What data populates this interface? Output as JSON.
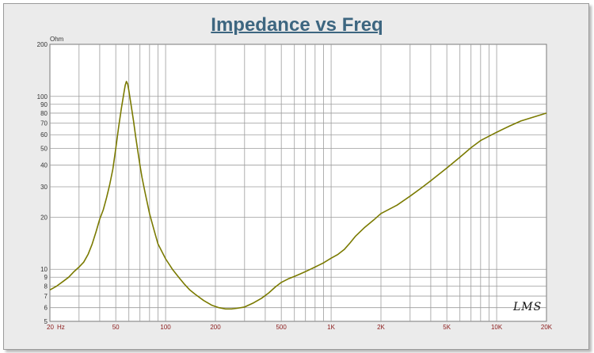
{
  "chart_data": {
    "type": "line",
    "title": "Impedance vs Freq",
    "ylabel": "Ohm",
    "xlabel": "",
    "x_unit": "Hz",
    "x_scale": "log",
    "y_scale": "log",
    "xlim": [
      20,
      20000
    ],
    "ylim": [
      5,
      200
    ],
    "grid": true,
    "x_ticks": [
      {
        "value": 20,
        "label": "20"
      },
      {
        "value": 50,
        "label": "50"
      },
      {
        "value": 100,
        "label": "100"
      },
      {
        "value": 200,
        "label": "200"
      },
      {
        "value": 500,
        "label": "500"
      },
      {
        "value": 1000,
        "label": "1K"
      },
      {
        "value": 2000,
        "label": "2K"
      },
      {
        "value": 5000,
        "label": "5K"
      },
      {
        "value": 10000,
        "label": "10K"
      },
      {
        "value": 20000,
        "label": "20K"
      }
    ],
    "y_ticks": [
      {
        "value": 200,
        "label": "200"
      },
      {
        "value": 100,
        "label": "100"
      },
      {
        "value": 90,
        "label": "90"
      },
      {
        "value": 80,
        "label": "80"
      },
      {
        "value": 70,
        "label": "70"
      },
      {
        "value": 60,
        "label": "60"
      },
      {
        "value": 50,
        "label": "50"
      },
      {
        "value": 40,
        "label": "40"
      },
      {
        "value": 30,
        "label": "30"
      },
      {
        "value": 20,
        "label": "20"
      },
      {
        "value": 10,
        "label": "10"
      },
      {
        "value": 9,
        "label": "9"
      },
      {
        "value": 8,
        "label": "8"
      },
      {
        "value": 7,
        "label": "7"
      },
      {
        "value": 6,
        "label": "6"
      },
      {
        "value": 5,
        "label": "5"
      }
    ],
    "series": [
      {
        "color": "#7a7a00",
        "x": [
          20,
          22,
          24,
          26,
          28,
          30,
          32,
          34,
          36,
          38,
          40,
          42,
          44,
          46,
          48,
          50,
          52,
          54,
          56,
          57,
          58,
          59,
          60,
          62,
          64,
          66,
          68,
          70,
          72,
          75,
          80,
          85,
          90,
          100,
          110,
          120,
          130,
          140,
          150,
          170,
          190,
          210,
          230,
          250,
          270,
          300,
          340,
          380,
          420,
          460,
          500,
          550,
          600,
          650,
          700,
          750,
          800,
          850,
          900,
          1000,
          1100,
          1200,
          1300,
          1400,
          1600,
          1800,
          2000,
          2500,
          3000,
          3500,
          4000,
          5000,
          6000,
          7000,
          8000,
          10000,
          12000,
          14000,
          16000,
          20000
        ],
        "y": [
          7.6,
          8.0,
          8.5,
          9.0,
          9.7,
          10.3,
          11.0,
          12.2,
          14.0,
          16.5,
          19.5,
          22.0,
          26.0,
          31.0,
          38.0,
          50.0,
          66.0,
          85.0,
          105.0,
          116.0,
          122.0,
          118.0,
          108.0,
          88.0,
          72.0,
          58.0,
          48.0,
          40.0,
          34.0,
          28.0,
          21.0,
          17.0,
          14.0,
          11.5,
          10.0,
          9.0,
          8.2,
          7.6,
          7.2,
          6.6,
          6.2,
          6.0,
          5.9,
          5.9,
          5.95,
          6.05,
          6.4,
          6.8,
          7.3,
          7.9,
          8.4,
          8.8,
          9.1,
          9.4,
          9.7,
          10.0,
          10.3,
          10.6,
          10.9,
          11.6,
          12.2,
          13.0,
          14.2,
          15.5,
          17.5,
          19.2,
          21.0,
          23.5,
          26.5,
          29.5,
          32.5,
          38.5,
          44.5,
          50.5,
          55.5,
          62.0,
          67.5,
          72.0,
          75.0,
          80.0
        ]
      }
    ],
    "annotation": "LMS"
  }
}
